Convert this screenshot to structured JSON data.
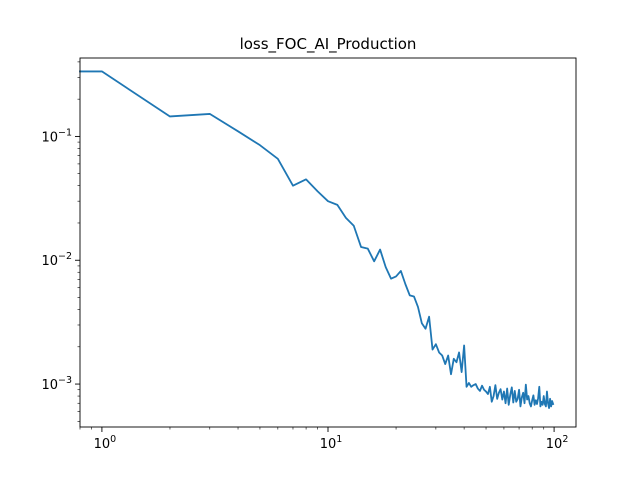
{
  "chart_data": {
    "type": "line",
    "title": "loss_FOC_AI_Production",
    "xlabel": "",
    "ylabel": "",
    "xscale": "log",
    "yscale": "log",
    "xlim": [
      0.8,
      125
    ],
    "ylim": [
      0.00045,
      0.43
    ],
    "grid": false,
    "xticks": [
      {
        "value": 1,
        "base": "10",
        "exp": "0"
      },
      {
        "value": 10,
        "base": "10",
        "exp": "1"
      },
      {
        "value": 100,
        "base": "10",
        "exp": "2"
      }
    ],
    "yticks": [
      {
        "value": 0.001,
        "base": "10",
        "exp": "−3"
      },
      {
        "value": 0.01,
        "base": "10",
        "exp": "−2"
      },
      {
        "value": 0.1,
        "base": "10",
        "exp": "−1"
      }
    ],
    "line_color": "#1f77b4",
    "series": [
      {
        "x": [
          0.8,
          1,
          2,
          3,
          4,
          5,
          6,
          7,
          8,
          9,
          10,
          11,
          12,
          13,
          14,
          15,
          16,
          17,
          18,
          19,
          20,
          21,
          22,
          23,
          24,
          25,
          26,
          27,
          28,
          29,
          30,
          31,
          32,
          33,
          34,
          35,
          36,
          37,
          38,
          39,
          40,
          41,
          42,
          43,
          44,
          45,
          46,
          47,
          48,
          49,
          50,
          51,
          52,
          53,
          54,
          55,
          56,
          57,
          58,
          59,
          60,
          61,
          62,
          63,
          64,
          65,
          66,
          67,
          68,
          69,
          70,
          71,
          72,
          73,
          74,
          75,
          76,
          77,
          78,
          79,
          80,
          81,
          82,
          83,
          84,
          85,
          86,
          87,
          88,
          89,
          90,
          91,
          92,
          93,
          94,
          95,
          96,
          97,
          98,
          99
        ],
        "y": [
          0.335,
          0.335,
          0.145,
          0.152,
          0.11,
          0.085,
          0.066,
          0.04,
          0.045,
          0.036,
          0.03,
          0.028,
          0.022,
          0.019,
          0.0128,
          0.0124,
          0.0098,
          0.0122,
          0.0088,
          0.0071,
          0.0074,
          0.0082,
          0.0064,
          0.0052,
          0.0051,
          0.0042,
          0.0031,
          0.0028,
          0.0035,
          0.0019,
          0.0021,
          0.0018,
          0.0017,
          0.00145,
          0.0017,
          0.0012,
          0.0016,
          0.0015,
          0.0018,
          0.00125,
          0.00205,
          0.00095,
          0.00102,
          0.00095,
          0.00098,
          0.001,
          0.00092,
          0.00088,
          0.00097,
          0.0009,
          0.00087,
          0.00083,
          0.00095,
          0.00072,
          0.0008,
          0.00098,
          0.00076,
          0.00085,
          0.00091,
          0.00075,
          0.00087,
          0.0007,
          0.00092,
          0.00068,
          0.00082,
          0.00094,
          0.00071,
          0.00088,
          0.00072,
          0.00076,
          0.0009,
          0.00066,
          0.00078,
          0.00085,
          0.0007,
          0.00099,
          0.00075,
          0.0008,
          0.0007,
          0.00066,
          0.00074,
          0.00081,
          0.00068,
          0.00074,
          0.00069,
          0.00077,
          0.00095,
          0.00066,
          0.00072,
          0.00068,
          0.0008,
          0.00069,
          0.00066,
          0.00087,
          0.0007,
          0.00064,
          0.00076,
          0.00066,
          0.00073,
          0.00069
        ]
      }
    ]
  }
}
